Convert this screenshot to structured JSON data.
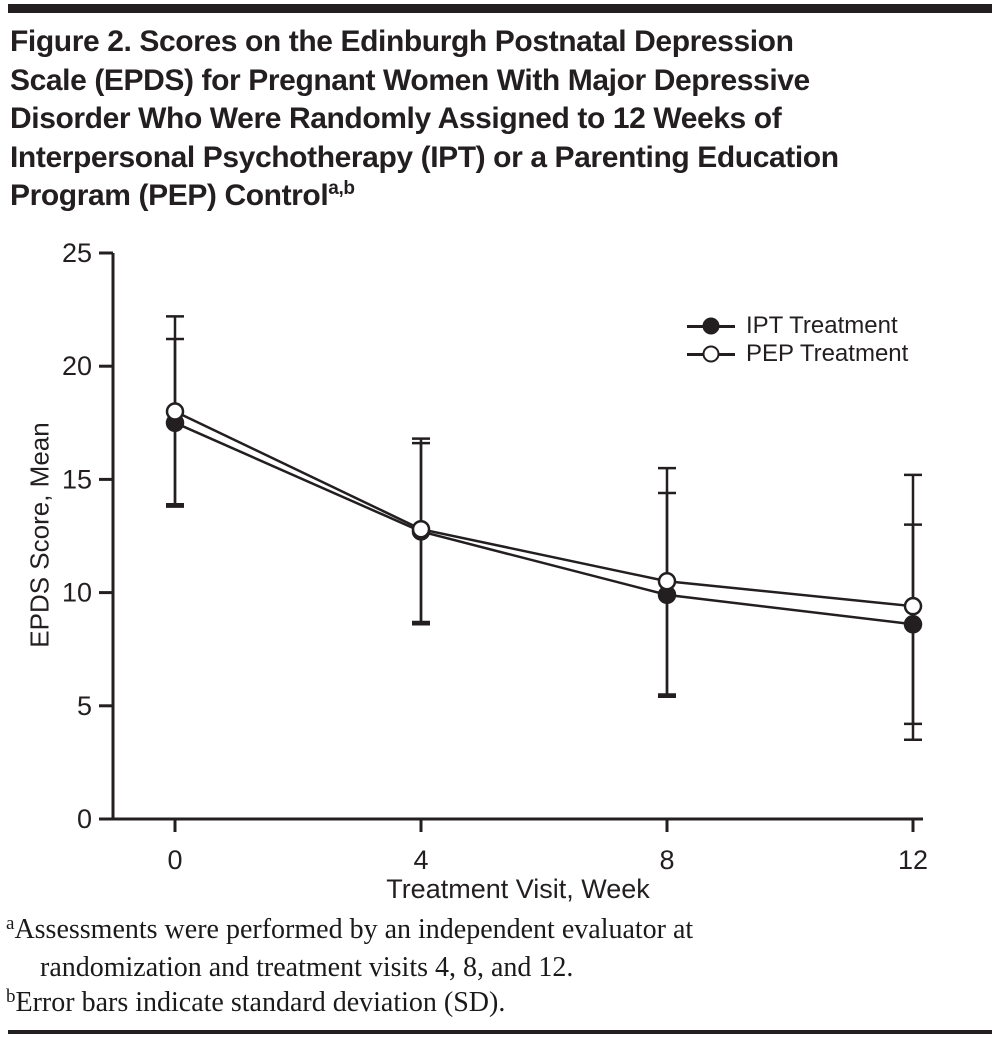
{
  "title": {
    "lines": [
      "Figure 2. Scores on the Edinburgh Postnatal Depression",
      "Scale (EPDS) for Pregnant Women With Major Depressive",
      "Disorder Who Were Randomly Assigned to 12 Weeks of",
      "Interpersonal Psychotherapy (IPT) or a Parenting Education",
      "Program (PEP) Control"
    ],
    "superscript": "a,b"
  },
  "chart_data": {
    "type": "line",
    "x": [
      0,
      4,
      8,
      12
    ],
    "xticks": [
      0,
      4,
      8,
      12
    ],
    "yticks": [
      0,
      5,
      10,
      15,
      20,
      25
    ],
    "xlabel": "Treatment Visit, Week",
    "ylabel": "EPDS Score, Mean",
    "xlim": [
      0,
      12
    ],
    "ylim": [
      0,
      25
    ],
    "grid": false,
    "legend_position": "top-right-inside",
    "error_bars_meaning": "standard deviation (SD)",
    "color": "#231f20",
    "series": [
      {
        "name": "IPT Treatment",
        "marker": "filled-circle",
        "values": [
          17.5,
          12.7,
          9.9,
          8.6
        ],
        "error_upper": [
          21.2,
          16.6,
          14.4,
          13.0
        ],
        "error_lower": [
          13.9,
          8.6,
          5.4,
          4.2
        ]
      },
      {
        "name": "PEP Treatment",
        "marker": "open-circle",
        "values": [
          18.0,
          12.8,
          10.5,
          9.4
        ],
        "error_upper": [
          22.2,
          16.8,
          15.5,
          15.2
        ],
        "error_lower": [
          13.8,
          8.7,
          5.5,
          3.5
        ]
      }
    ]
  },
  "footnotes": [
    {
      "marker": "a",
      "line1": "Assessments were performed by an independent evaluator at",
      "line2": "randomization and treatment visits 4, 8, and 12."
    },
    {
      "marker": "b",
      "line1": "Error bars indicate standard deviation (SD).",
      "line2": ""
    }
  ],
  "colors": {
    "text": "#231f20",
    "line": "#231f20",
    "background": "#ffffff"
  }
}
